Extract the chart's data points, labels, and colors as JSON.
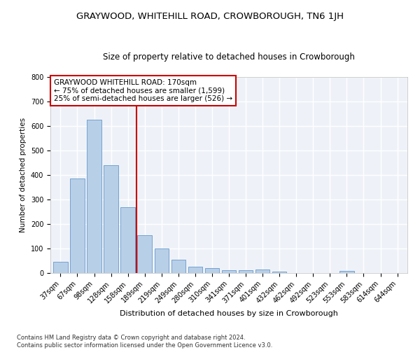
{
  "title": "GRAYWOOD, WHITEHILL ROAD, CROWBOROUGH, TN6 1JH",
  "subtitle": "Size of property relative to detached houses in Crowborough",
  "xlabel": "Distribution of detached houses by size in Crowborough",
  "ylabel": "Number of detached properties",
  "categories": [
    "37sqm",
    "67sqm",
    "98sqm",
    "128sqm",
    "158sqm",
    "189sqm",
    "219sqm",
    "249sqm",
    "280sqm",
    "310sqm",
    "341sqm",
    "371sqm",
    "401sqm",
    "432sqm",
    "462sqm",
    "492sqm",
    "523sqm",
    "553sqm",
    "583sqm",
    "614sqm",
    "644sqm"
  ],
  "values": [
    47,
    385,
    625,
    440,
    270,
    153,
    100,
    53,
    27,
    20,
    12,
    12,
    15,
    7,
    0,
    0,
    0,
    8,
    0,
    0,
    0
  ],
  "bar_color": "#b8cfe8",
  "bar_edge_color": "#6699cc",
  "vline_x": 4.5,
  "vline_color": "#cc0000",
  "annotation_text": "GRAYWOOD WHITEHILL ROAD: 170sqm\n← 75% of detached houses are smaller (1,599)\n25% of semi-detached houses are larger (526) →",
  "annotation_box_color": "white",
  "annotation_box_edge_color": "#cc0000",
  "ylim": [
    0,
    800
  ],
  "yticks": [
    0,
    100,
    200,
    300,
    400,
    500,
    600,
    700,
    800
  ],
  "background_color": "#eef2f8",
  "grid_color": "white",
  "footnote": "Contains HM Land Registry data © Crown copyright and database right 2024.\nContains public sector information licensed under the Open Government Licence v3.0.",
  "title_fontsize": 9.5,
  "subtitle_fontsize": 8.5,
  "xlabel_fontsize": 8,
  "ylabel_fontsize": 7.5,
  "tick_fontsize": 7,
  "annotation_fontsize": 7.5,
  "footnote_fontsize": 6
}
